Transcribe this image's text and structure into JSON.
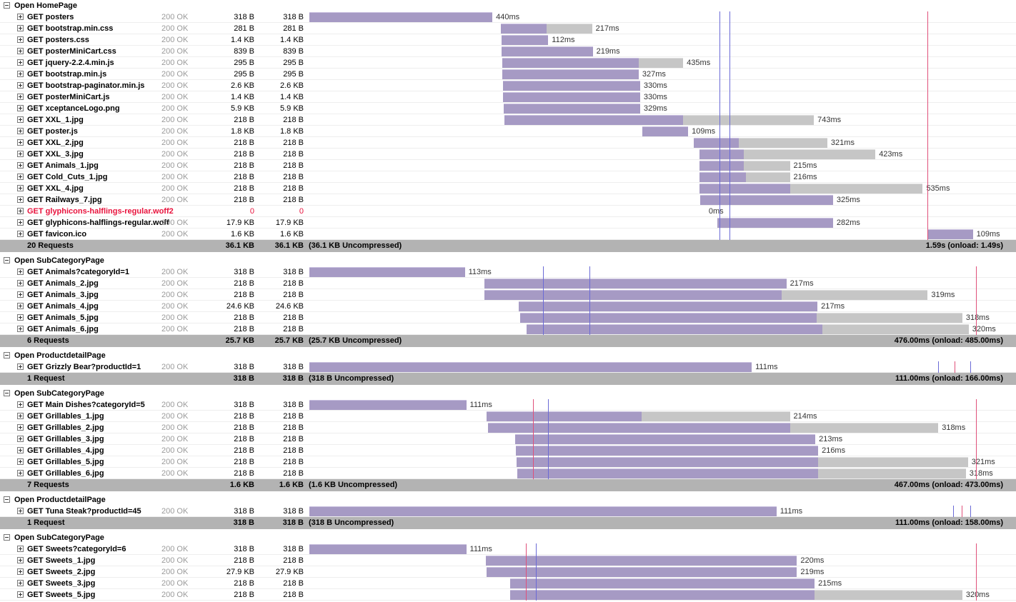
{
  "groups": [
    {
      "title": "Open HomePage",
      "markers": [
        {
          "t": 0.58,
          "color": "blue"
        },
        {
          "t": 0.595,
          "color": "blue"
        },
        {
          "t": 0.875,
          "color": "red"
        }
      ],
      "requests": [
        {
          "name": "GET posters",
          "status": "200 OK",
          "size": "318 B",
          "size2": "318 B",
          "start": 0,
          "end": 0.259,
          "end2": 0.259,
          "label": "440ms"
        },
        {
          "name": "GET bootstrap.min.css",
          "status": "200 OK",
          "size": "281 B",
          "size2": "281 B",
          "start": 0.271,
          "end": 0.336,
          "end2": 0.4,
          "label": "217ms"
        },
        {
          "name": "GET posters.css",
          "status": "200 OK",
          "size": "1.4 KB",
          "size2": "1.4 KB",
          "start": 0.272,
          "end": 0.338,
          "end2": 0.338,
          "label": "112ms"
        },
        {
          "name": "GET posterMiniCart.css",
          "status": "200 OK",
          "size": "839 B",
          "size2": "839 B",
          "start": 0.272,
          "end": 0.401,
          "end2": 0.401,
          "label": "219ms"
        },
        {
          "name": "GET jquery-2.2.4.min.js",
          "status": "200 OK",
          "size": "295 B",
          "size2": "295 B",
          "start": 0.273,
          "end": 0.466,
          "end2": 0.529,
          "label": "435ms"
        },
        {
          "name": "GET bootstrap.min.js",
          "status": "200 OK",
          "size": "295 B",
          "size2": "295 B",
          "start": 0.273,
          "end": 0.466,
          "end2": 0.466,
          "label": "327ms"
        },
        {
          "name": "GET bootstrap-paginator.min.js",
          "status": "200 OK",
          "size": "2.6 KB",
          "size2": "2.6 KB",
          "start": 0.274,
          "end": 0.468,
          "end2": 0.468,
          "label": "330ms"
        },
        {
          "name": "GET posterMiniCart.js",
          "status": "200 OK",
          "size": "1.4 KB",
          "size2": "1.4 KB",
          "start": 0.274,
          "end": 0.468,
          "end2": 0.468,
          "label": "330ms"
        },
        {
          "name": "GET xceptanceLogo.png",
          "status": "200 OK",
          "size": "5.9 KB",
          "size2": "5.9 KB",
          "start": 0.275,
          "end": 0.468,
          "end2": 0.468,
          "label": "329ms"
        },
        {
          "name": "GET XXL_1.jpg",
          "status": "200 OK",
          "size": "218 B",
          "size2": "218 B",
          "start": 0.276,
          "end": 0.529,
          "end2": 0.714,
          "label": "743ms"
        },
        {
          "name": "GET poster.js",
          "status": "200 OK",
          "size": "1.8 KB",
          "size2": "1.8 KB",
          "start": 0.471,
          "end": 0.536,
          "end2": 0.536,
          "label": "109ms"
        },
        {
          "name": "GET XXL_2.jpg",
          "status": "200 OK",
          "size": "218 B",
          "size2": "218 B",
          "start": 0.544,
          "end": 0.608,
          "end2": 0.733,
          "label": "321ms"
        },
        {
          "name": "GET XXL_3.jpg",
          "status": "200 OK",
          "size": "218 B",
          "size2": "218 B",
          "start": 0.552,
          "end": 0.615,
          "end2": 0.801,
          "label": "423ms"
        },
        {
          "name": "GET Animals_1.jpg",
          "status": "200 OK",
          "size": "218 B",
          "size2": "218 B",
          "start": 0.552,
          "end": 0.615,
          "end2": 0.68,
          "label": "215ms"
        },
        {
          "name": "GET Cold_Cuts_1.jpg",
          "status": "200 OK",
          "size": "218 B",
          "size2": "218 B",
          "start": 0.552,
          "end": 0.618,
          "end2": 0.68,
          "label": "216ms"
        },
        {
          "name": "GET XXL_4.jpg",
          "status": "200 OK",
          "size": "218 B",
          "size2": "218 B",
          "start": 0.552,
          "end": 0.68,
          "end2": 0.868,
          "label": "535ms"
        },
        {
          "name": "GET Railways_7.jpg",
          "status": "200 OK",
          "size": "218 B",
          "size2": "218 B",
          "start": 0.553,
          "end": 0.741,
          "end2": 0.741,
          "label": "325ms"
        },
        {
          "name": "GET glyphicons-halflings-regular.woff2",
          "status": "",
          "size": "0",
          "size2": "0",
          "start": 0.56,
          "end": 0.56,
          "end2": 0.56,
          "label": "0ms",
          "error": true
        },
        {
          "name": "GET glyphicons-halflings-regular.woff",
          "status": "200 OK",
          "size": "17.9 KB",
          "size2": "17.9 KB",
          "start": 0.577,
          "end": 0.741,
          "end2": 0.741,
          "label": "282ms"
        },
        {
          "name": "GET favicon.ico",
          "status": "200 OK",
          "size": "1.6 KB",
          "size2": "1.6 KB",
          "start": 0.876,
          "end": 0.939,
          "end2": 0.939,
          "label": "109ms"
        }
      ],
      "summary": {
        "count": "20 Requests",
        "size": "36.1 KB",
        "size2": "36.1 KB",
        "text": "(36.1 KB Uncompressed)",
        "time": "1.59s (onload: 1.49s)"
      }
    },
    {
      "title": "Open SubCategoryPage",
      "markers": [
        {
          "t": 0.331,
          "color": "blue"
        },
        {
          "t": 0.396,
          "color": "blue"
        },
        {
          "t": 0.943,
          "color": "red"
        }
      ],
      "requests": [
        {
          "name": "GET Animals?categoryId=1",
          "status": "200 OK",
          "size": "318 B",
          "size2": "318 B",
          "start": 0,
          "end": 0.22,
          "end2": 0.22,
          "label": "113ms"
        },
        {
          "name": "GET Animals_2.jpg",
          "status": "200 OK",
          "size": "218 B",
          "size2": "218 B",
          "start": 0.248,
          "end": 0.675,
          "end2": 0.675,
          "label": "217ms"
        },
        {
          "name": "GET Animals_3.jpg",
          "status": "200 OK",
          "size": "218 B",
          "size2": "218 B",
          "start": 0.248,
          "end": 0.668,
          "end2": 0.875,
          "label": "319ms"
        },
        {
          "name": "GET Animals_4.jpg",
          "status": "200 OK",
          "size": "24.6 KB",
          "size2": "24.6 KB",
          "start": 0.296,
          "end": 0.719,
          "end2": 0.719,
          "label": "217ms"
        },
        {
          "name": "GET Animals_5.jpg",
          "status": "200 OK",
          "size": "218 B",
          "size2": "218 B",
          "start": 0.298,
          "end": 0.718,
          "end2": 0.924,
          "label": "318ms"
        },
        {
          "name": "GET Animals_6.jpg",
          "status": "200 OK",
          "size": "218 B",
          "size2": "218 B",
          "start": 0.307,
          "end": 0.726,
          "end2": 0.933,
          "label": "320ms"
        }
      ],
      "summary": {
        "count": "6 Requests",
        "size": "25.7 KB",
        "size2": "25.7 KB",
        "text": "(25.7 KB Uncompressed)",
        "time": "476.00ms (onload: 485.00ms)"
      }
    },
    {
      "title": "Open ProductdetailPage",
      "markers": [
        {
          "t": 0.89,
          "color": "blue"
        },
        {
          "t": 0.913,
          "color": "red"
        },
        {
          "t": 0.935,
          "color": "blue"
        }
      ],
      "requests": [
        {
          "name": "GET Grizzly Bear?productId=1",
          "status": "200 OK",
          "size": "318 B",
          "size2": "318 B",
          "start": 0,
          "end": 0.626,
          "end2": 0.626,
          "label": "111ms"
        }
      ],
      "summary": {
        "count": "1 Request",
        "size": "318 B",
        "size2": "318 B",
        "text": "(318 B Uncompressed)",
        "time": "111.00ms (onload: 166.00ms)"
      }
    },
    {
      "title": "Open SubCategoryPage",
      "markers": [
        {
          "t": 0.316,
          "color": "red"
        },
        {
          "t": 0.338,
          "color": "blue"
        },
        {
          "t": 0.943,
          "color": "red"
        }
      ],
      "requests": [
        {
          "name": "GET Main Dishes?categoryId=5",
          "status": "200 OK",
          "size": "318 B",
          "size2": "318 B",
          "start": 0,
          "end": 0.222,
          "end2": 0.222,
          "label": "111ms"
        },
        {
          "name": "GET Grillables_1.jpg",
          "status": "200 OK",
          "size": "218 B",
          "size2": "218 B",
          "start": 0.251,
          "end": 0.47,
          "end2": 0.68,
          "label": "214ms"
        },
        {
          "name": "GET Grillables_2.jpg",
          "status": "200 OK",
          "size": "218 B",
          "size2": "218 B",
          "start": 0.253,
          "end": 0.68,
          "end2": 0.89,
          "label": "318ms"
        },
        {
          "name": "GET Grillables_3.jpg",
          "status": "200 OK",
          "size": "218 B",
          "size2": "218 B",
          "start": 0.291,
          "end": 0.716,
          "end2": 0.716,
          "label": "213ms"
        },
        {
          "name": "GET Grillables_4.jpg",
          "status": "200 OK",
          "size": "218 B",
          "size2": "218 B",
          "start": 0.292,
          "end": 0.72,
          "end2": 0.72,
          "label": "216ms"
        },
        {
          "name": "GET Grillables_5.jpg",
          "status": "200 OK",
          "size": "218 B",
          "size2": "218 B",
          "start": 0.293,
          "end": 0.72,
          "end2": 0.932,
          "label": "321ms"
        },
        {
          "name": "GET Grillables_6.jpg",
          "status": "200 OK",
          "size": "218 B",
          "size2": "218 B",
          "start": 0.294,
          "end": 0.72,
          "end2": 0.929,
          "label": "318ms"
        }
      ],
      "summary": {
        "count": "7 Requests",
        "size": "1.6 KB",
        "size2": "1.6 KB",
        "text": "(1.6 KB Uncompressed)",
        "time": "467.00ms (onload: 473.00ms)"
      }
    },
    {
      "title": "Open ProductdetailPage",
      "markers": [
        {
          "t": 0.911,
          "color": "blue"
        },
        {
          "t": 0.923,
          "color": "red"
        },
        {
          "t": 0.935,
          "color": "blue"
        }
      ],
      "requests": [
        {
          "name": "GET Tuna Steak?productId=45",
          "status": "200 OK",
          "size": "318 B",
          "size2": "318 B",
          "start": 0,
          "end": 0.661,
          "end2": 0.661,
          "label": "111ms"
        }
      ],
      "summary": {
        "count": "1 Request",
        "size": "318 B",
        "size2": "318 B",
        "text": "(318 B Uncompressed)",
        "time": "111.00ms (onload: 158.00ms)"
      }
    },
    {
      "title": "Open SubCategoryPage",
      "markers": [
        {
          "t": 0.306,
          "color": "red"
        },
        {
          "t": 0.321,
          "color": "blue"
        },
        {
          "t": 0.943,
          "color": "red"
        }
      ],
      "requests": [
        {
          "name": "GET Sweets?categoryId=6",
          "status": "200 OK",
          "size": "318 B",
          "size2": "318 B",
          "start": 0,
          "end": 0.222,
          "end2": 0.222,
          "label": "111ms"
        },
        {
          "name": "GET Sweets_1.jpg",
          "status": "200 OK",
          "size": "218 B",
          "size2": "218 B",
          "start": 0.25,
          "end": 0.69,
          "end2": 0.69,
          "label": "220ms"
        },
        {
          "name": "GET Sweets_2.jpg",
          "status": "200 OK",
          "size": "27.9 KB",
          "size2": "27.9 KB",
          "start": 0.251,
          "end": 0.69,
          "end2": 0.69,
          "label": "219ms"
        },
        {
          "name": "GET Sweets_3.jpg",
          "status": "200 OK",
          "size": "218 B",
          "size2": "218 B",
          "start": 0.284,
          "end": 0.715,
          "end2": 0.715,
          "label": "215ms"
        },
        {
          "name": "GET Sweets_5.jpg",
          "status": "200 OK",
          "size": "218 B",
          "size2": "218 B",
          "start": 0.284,
          "end": 0.715,
          "end2": 0.924,
          "label": "320ms"
        }
      ],
      "summary": null
    }
  ]
}
